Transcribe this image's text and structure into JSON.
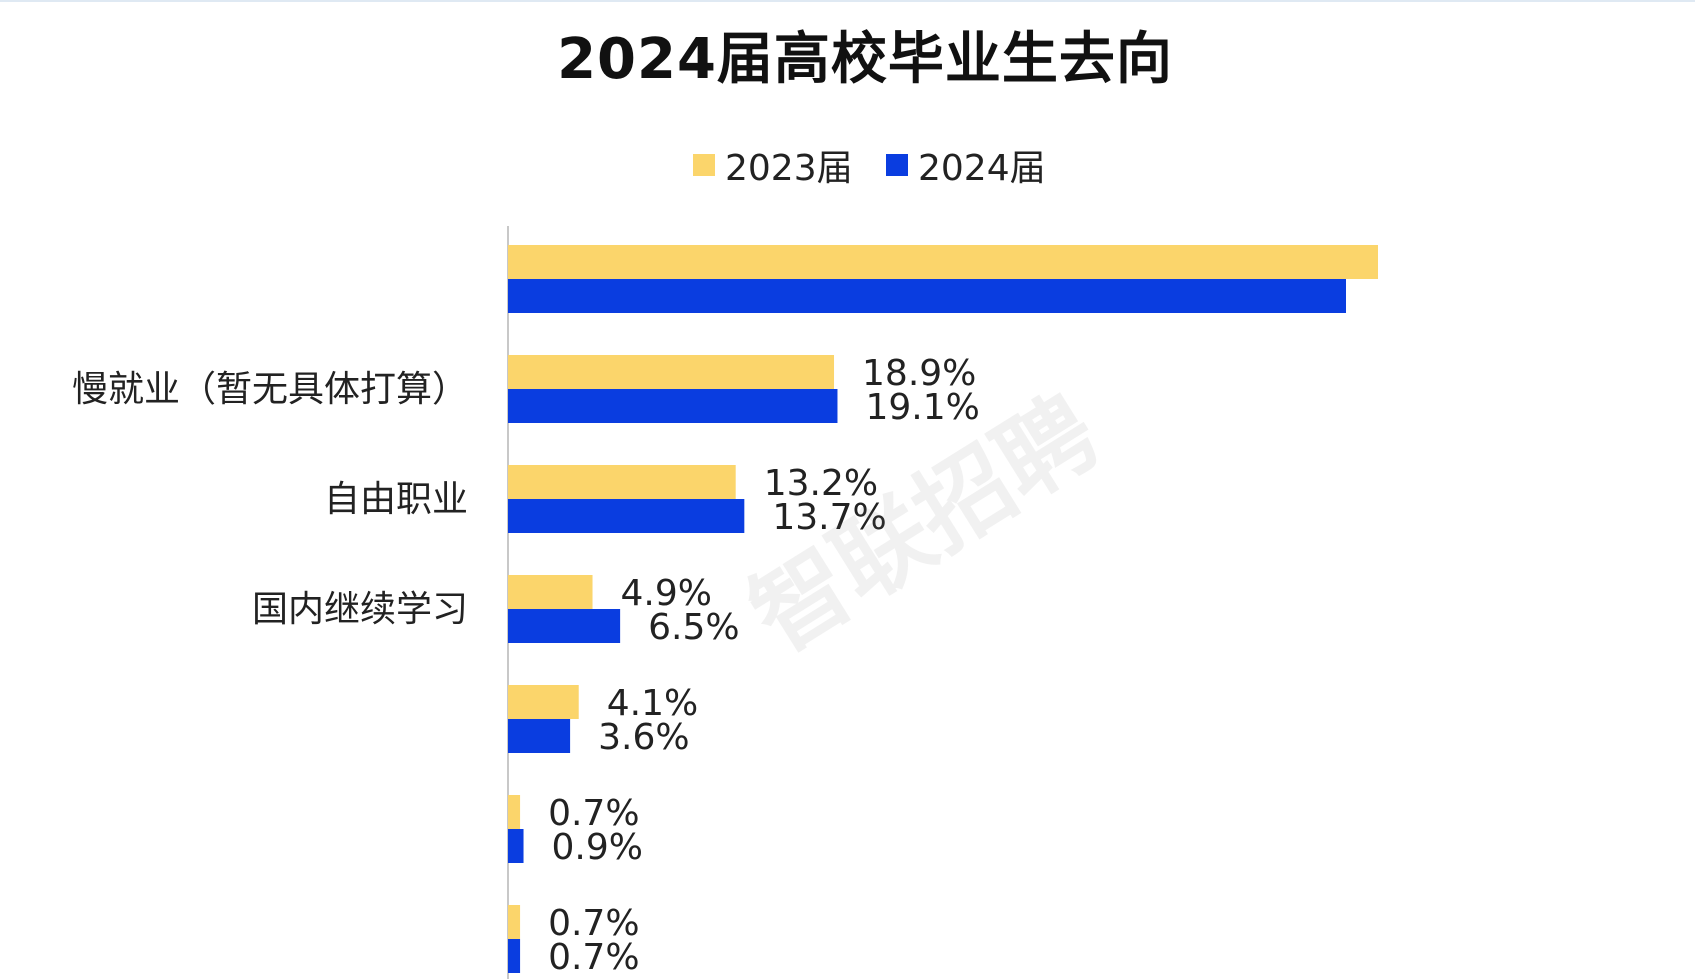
{
  "chart_data": {
    "type": "bar",
    "orientation": "horizontal",
    "title": "2024届高校毕业生去向",
    "categories": [
      "",
      "慢就业（暂无具体打算）",
      "自由职业",
      "国内继续学习",
      "",
      "",
      ""
    ],
    "series": [
      {
        "name": "2023届",
        "color": "#fbd56b",
        "values": [
          null,
          18.9,
          13.2,
          4.9,
          4.1,
          0.7,
          0.7
        ],
        "labels": [
          "",
          "18.9%",
          "13.2%",
          "4.9%",
          "4.1%",
          "0.7%",
          "0.7%"
        ]
      },
      {
        "name": "2024届",
        "color": "#0a3de0",
        "values": [
          null,
          19.1,
          13.7,
          6.5,
          3.6,
          0.9,
          0.7
        ],
        "labels": [
          "",
          "19.1%",
          "13.7%",
          "6.5%",
          "3.6%",
          "0.9%",
          "0.7%"
        ]
      }
    ],
    "first_category_fraction_of_axis": {
      "2023届": 0.87,
      "2024届": 0.838
    },
    "grid": false,
    "legend_position": "top"
  },
  "watermark": "智联招聘"
}
